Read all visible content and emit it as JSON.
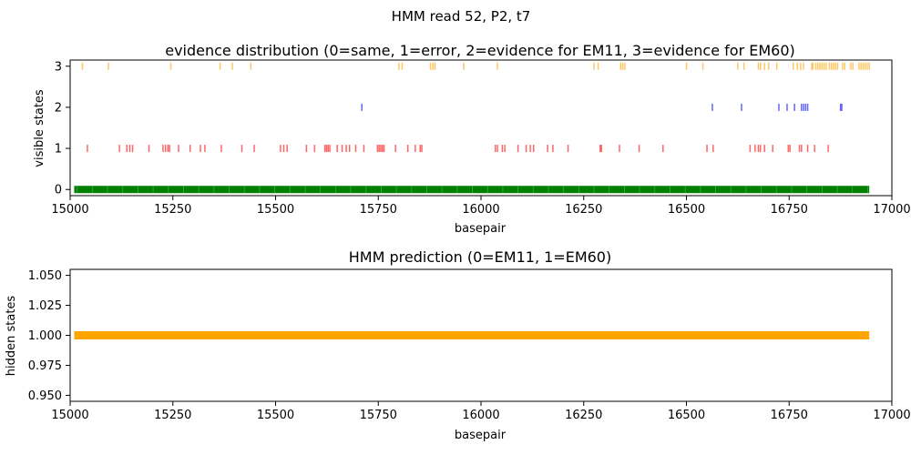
{
  "suptitle": "HMM read 52, P2, t7",
  "colors": {
    "state0": "#008000",
    "state1": "#ff0000",
    "state2": "#0000ff",
    "state3": "#ffa500",
    "hidden": "#ffa500"
  },
  "chart_data": [
    {
      "type": "scatter",
      "title": "evidence distribution (0=same, 1=error, 2=evidence for EM11, 3=evidence for EM60)",
      "xlabel": "basepair",
      "ylabel": "visible states",
      "xlim": [
        15000,
        17000
      ],
      "ylim": [
        -0.15,
        3.15
      ],
      "xticks": [
        15000,
        15250,
        15500,
        15750,
        16000,
        16250,
        16500,
        16750,
        17000
      ],
      "yticks": [
        0,
        1,
        2,
        3
      ],
      "marker": "vertical-line",
      "grid": false,
      "state0_range": [
        15010,
        16945
      ],
      "series": [
        {
          "state": 3,
          "x": [
            15030,
            15093,
            15245,
            15365,
            15395,
            15440,
            15800,
            15808,
            15877,
            15883,
            15888,
            15958,
            16040,
            16275,
            16285,
            16340,
            16345,
            16350,
            16500,
            16540,
            16625,
            16640,
            16675,
            16680,
            16690,
            16700,
            16720,
            16760,
            16770,
            16778,
            16785,
            16805,
            16808,
            16815,
            16820,
            16825,
            16830,
            16835,
            16840,
            16848,
            16853,
            16858,
            16863,
            16868,
            16880,
            16885,
            16900,
            16905,
            16920,
            16925,
            16930,
            16935,
            16940,
            16945
          ]
        },
        {
          "state": 2,
          "x": [
            15710,
            16563,
            16634,
            16725,
            16745,
            16763,
            16780,
            16785,
            16790,
            16795,
            16875,
            16878
          ]
        },
        {
          "state": 1,
          "x": [
            15042,
            15120,
            15138,
            15145,
            15152,
            15192,
            15226,
            15232,
            15238,
            15242,
            15264,
            15292,
            15317,
            15328,
            15368,
            15418,
            15448,
            15512,
            15520,
            15528,
            15575,
            15595,
            15620,
            15624,
            15628,
            15632,
            15650,
            15662,
            15672,
            15680,
            15695,
            15715,
            15748,
            15752,
            15756,
            15760,
            15764,
            15792,
            15822,
            15840,
            15852,
            15856,
            16035,
            16040,
            16052,
            16058,
            16090,
            16110,
            16120,
            16128,
            16162,
            16175,
            16212,
            16290,
            16293,
            16337,
            16385,
            16443,
            16550,
            16565,
            16655,
            16667,
            16675,
            16680,
            16690,
            16710,
            16748,
            16752,
            16775,
            16780,
            16795,
            16812,
            16845
          ]
        },
        {
          "state": 0,
          "x_range": [
            15010,
            16945
          ]
        }
      ]
    },
    {
      "type": "scatter",
      "title": "HMM prediction (0=EM11, 1=EM60)",
      "xlabel": "basepair",
      "ylabel": "hidden states",
      "xlim": [
        15000,
        17000
      ],
      "ylim": [
        0.945,
        1.055
      ],
      "xticks": [
        15000,
        15250,
        15500,
        15750,
        16000,
        16250,
        16500,
        16750,
        17000
      ],
      "yticks": [
        "0.950",
        "0.975",
        "1.000",
        "1.025",
        "1.050"
      ],
      "grid": false,
      "series": [
        {
          "state": 1,
          "x_range": [
            15010,
            16945
          ]
        }
      ]
    }
  ]
}
